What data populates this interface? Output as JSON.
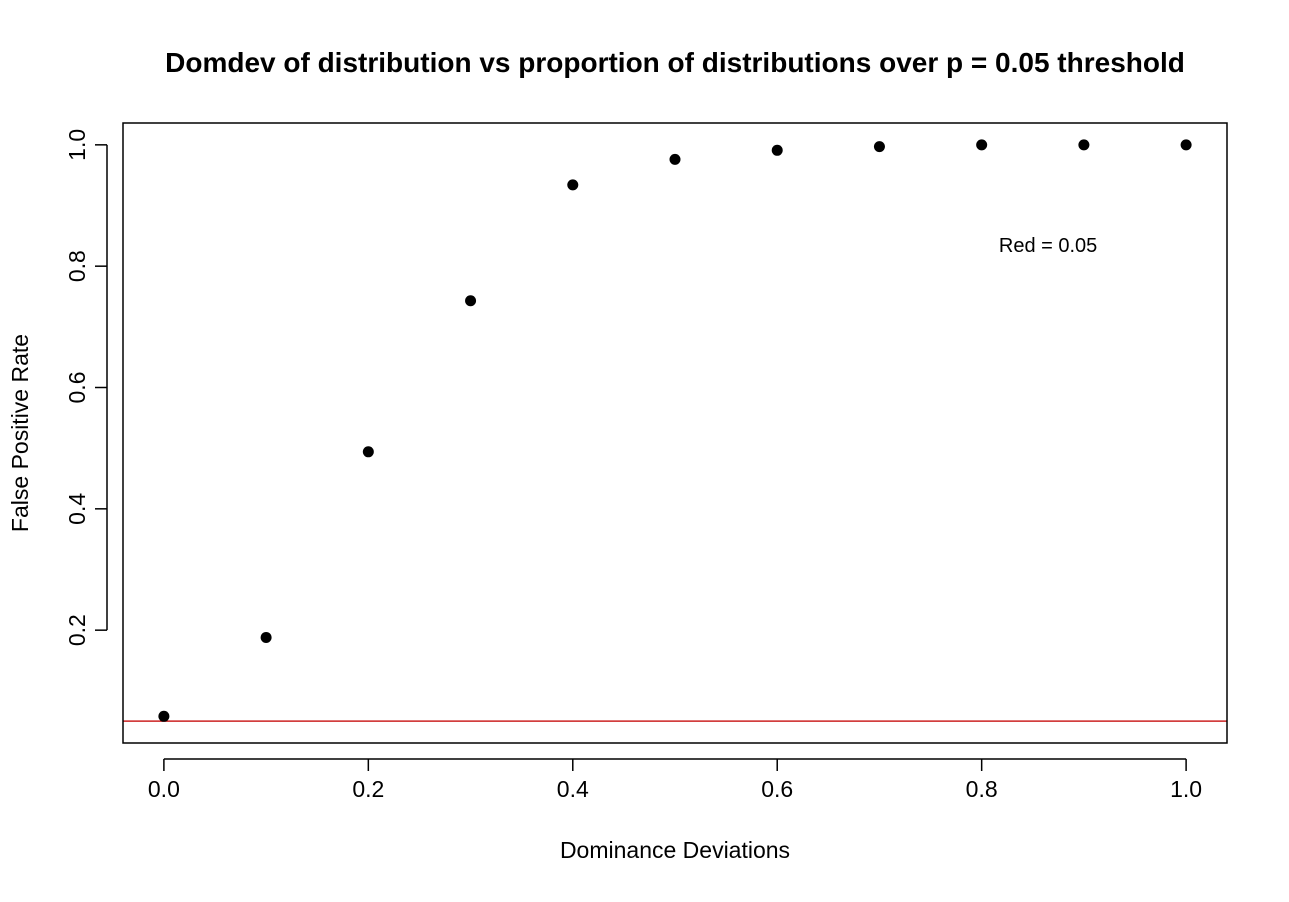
{
  "chart_data": {
    "type": "scatter",
    "title": "Domdev of distribution vs proportion of distributions over p = 0.05 threshold",
    "xlabel": "Dominance Deviations",
    "ylabel": "False Positive Rate",
    "xlim": [
      -0.04,
      1.04
    ],
    "ylim": [
      0.014,
      1.036
    ],
    "x_ticks": [
      {
        "value": 0.0,
        "label": "0.0"
      },
      {
        "value": 0.2,
        "label": "0.2"
      },
      {
        "value": 0.4,
        "label": "0.4"
      },
      {
        "value": 0.6,
        "label": "0.6"
      },
      {
        "value": 0.8,
        "label": "0.8"
      },
      {
        "value": 1.0,
        "label": "1.0"
      }
    ],
    "y_ticks": [
      {
        "value": 0.2,
        "label": "0.2"
      },
      {
        "value": 0.4,
        "label": "0.4"
      },
      {
        "value": 0.6,
        "label": "0.6"
      },
      {
        "value": 0.8,
        "label": "0.8"
      },
      {
        "value": 1.0,
        "label": "1.0"
      }
    ],
    "series": [
      {
        "x": [
          0.0,
          0.1,
          0.2,
          0.3,
          0.4,
          0.5,
          0.6,
          0.7,
          0.8,
          0.9,
          1.0
        ],
        "y": [
          0.058,
          0.188,
          0.494,
          0.743,
          0.934,
          0.976,
          0.991,
          0.997,
          1.0,
          1.0,
          1.0
        ],
        "color": "#000000"
      }
    ],
    "reference_lines": [
      {
        "orientation": "horizontal",
        "value": 0.05,
        "color": "#cc2222"
      }
    ],
    "annotations": [
      {
        "text": "Red = 0.05",
        "x": 0.865,
        "y": 0.823
      }
    ],
    "grid": false,
    "legend": "none"
  }
}
